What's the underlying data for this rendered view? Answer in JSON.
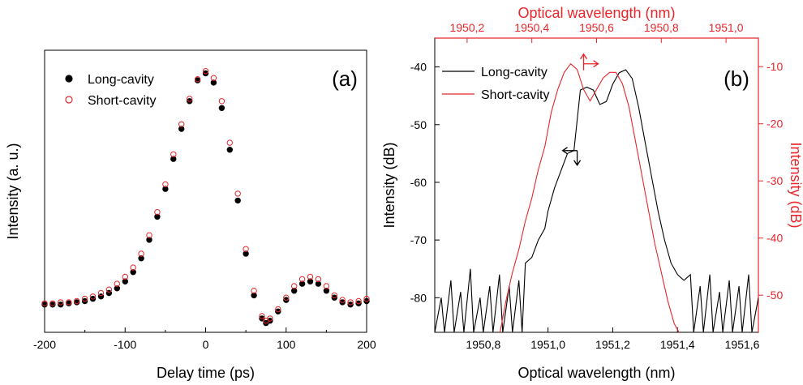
{
  "chart_data": [
    {
      "type": "scatter",
      "panel_label": "(a)",
      "xlabel": "Delay time (ps)",
      "ylabel": "Intensity (a. u.)",
      "xlim": [
        -200,
        200
      ],
      "ylim": [
        -0.12,
        1.1
      ],
      "x_ticks": [
        -200,
        -100,
        0,
        100,
        200
      ],
      "x_tick_labels": [
        "-200",
        "-100",
        "0",
        "100",
        "200"
      ],
      "legend_position": "top-left",
      "series": [
        {
          "name": "Long-cavity",
          "marker": "filled-circle",
          "color": "#000000",
          "points": [
            [
              -200,
              0
            ],
            [
              -190,
              0
            ],
            [
              -180,
              0
            ],
            [
              -170,
              0.005
            ],
            [
              -160,
              0.01
            ],
            [
              -150,
              0.015
            ],
            [
              -140,
              0.025
            ],
            [
              -130,
              0.035
            ],
            [
              -120,
              0.05
            ],
            [
              -110,
              0.07
            ],
            [
              -100,
              0.1
            ],
            [
              -90,
              0.14
            ],
            [
              -80,
              0.2
            ],
            [
              -70,
              0.28
            ],
            [
              -60,
              0.38
            ],
            [
              -50,
              0.5
            ],
            [
              -40,
              0.63
            ],
            [
              -30,
              0.76
            ],
            [
              -20,
              0.88
            ],
            [
              -10,
              0.97
            ],
            [
              0,
              1.0
            ],
            [
              10,
              0.96
            ],
            [
              20,
              0.85
            ],
            [
              30,
              0.67
            ],
            [
              40,
              0.45
            ],
            [
              50,
              0.22
            ],
            [
              60,
              0.04
            ],
            [
              70,
              -0.06
            ],
            [
              75,
              -0.08
            ],
            [
              80,
              -0.07
            ],
            [
              90,
              -0.03
            ],
            [
              100,
              0.02
            ],
            [
              110,
              0.06
            ],
            [
              120,
              0.09
            ],
            [
              130,
              0.1
            ],
            [
              140,
              0.09
            ],
            [
              150,
              0.06
            ],
            [
              160,
              0.03
            ],
            [
              170,
              0.01
            ],
            [
              180,
              0.0
            ],
            [
              190,
              0.005
            ],
            [
              200,
              0.015
            ]
          ]
        },
        {
          "name": "Short-cavity",
          "marker": "open-circle",
          "color": "#e8262b",
          "points": [
            [
              -200,
              0.005
            ],
            [
              -190,
              0.005
            ],
            [
              -180,
              0.01
            ],
            [
              -170,
              0.01
            ],
            [
              -160,
              0.015
            ],
            [
              -150,
              0.025
            ],
            [
              -140,
              0.035
            ],
            [
              -130,
              0.05
            ],
            [
              -120,
              0.065
            ],
            [
              -110,
              0.09
            ],
            [
              -100,
              0.12
            ],
            [
              -90,
              0.16
            ],
            [
              -80,
              0.22
            ],
            [
              -70,
              0.3
            ],
            [
              -60,
              0.4
            ],
            [
              -50,
              0.52
            ],
            [
              -40,
              0.65
            ],
            [
              -30,
              0.78
            ],
            [
              -20,
              0.89
            ],
            [
              -10,
              0.975
            ],
            [
              0,
              1.01
            ],
            [
              10,
              0.98
            ],
            [
              20,
              0.88
            ],
            [
              30,
              0.7
            ],
            [
              40,
              0.48
            ],
            [
              50,
              0.24
            ],
            [
              60,
              0.06
            ],
            [
              70,
              -0.05
            ],
            [
              75,
              -0.07
            ],
            [
              80,
              -0.06
            ],
            [
              90,
              -0.02
            ],
            [
              100,
              0.03
            ],
            [
              110,
              0.08
            ],
            [
              120,
              0.11
            ],
            [
              130,
              0.12
            ],
            [
              140,
              0.11
            ],
            [
              150,
              0.08
            ],
            [
              160,
              0.04
            ],
            [
              170,
              0.02
            ],
            [
              180,
              0.01
            ],
            [
              190,
              0.015
            ],
            [
              200,
              0.025
            ]
          ]
        }
      ]
    },
    {
      "type": "line",
      "panel_label": "(b)",
      "xlabel": "Optical wavelength (nm)",
      "ylabel": "Intensity (dB)",
      "x2label": "Optical wavelength (nm)",
      "y2label": "Intensity (dB)",
      "xlim": [
        1950.65,
        1951.65
      ],
      "ylim": [
        -86,
        -35
      ],
      "x2lim": [
        1950.1,
        1951.1
      ],
      "y2lim": [
        -56.5,
        -5
      ],
      "x_ticks": [
        1950.8,
        1951.0,
        1951.2,
        1951.4,
        1951.6
      ],
      "x_tick_labels": [
        "1950,8",
        "1951,0",
        "1951,2",
        "1951,4",
        "1951,6"
      ],
      "y_ticks": [
        -80,
        -70,
        -60,
        -50,
        -40
      ],
      "y_tick_labels": [
        "-80",
        "-70",
        "-60",
        "-50",
        "-40"
      ],
      "x2_ticks": [
        1950.2,
        1950.4,
        1950.6,
        1950.8,
        1951.0
      ],
      "x2_tick_labels": [
        "1950,2",
        "1950,4",
        "1950,6",
        "1950,8",
        "1951,0"
      ],
      "y2_ticks": [
        -50,
        -40,
        -30,
        -20,
        -10
      ],
      "y2_tick_labels": [
        "-50",
        "-40",
        "-30",
        "-20",
        "-10"
      ],
      "axis2_color": "#e8262b",
      "legend_position": "top-left",
      "series": [
        {
          "name": "Long-cavity",
          "axis": "bottom-left",
          "color": "#000000",
          "points": [
            [
              1950.65,
              -86
            ],
            [
              1950.67,
              -80
            ],
            [
              1950.68,
              -86
            ],
            [
              1950.7,
              -77
            ],
            [
              1950.71,
              -86
            ],
            [
              1950.73,
              -79
            ],
            [
              1950.74,
              -86
            ],
            [
              1950.76,
              -75
            ],
            [
              1950.77,
              -86
            ],
            [
              1950.79,
              -80
            ],
            [
              1950.8,
              -86
            ],
            [
              1950.82,
              -78
            ],
            [
              1950.83,
              -86
            ],
            [
              1950.85,
              -76
            ],
            [
              1950.86,
              -86
            ],
            [
              1950.88,
              -78
            ],
            [
              1950.89,
              -86
            ],
            [
              1950.91,
              -77
            ],
            [
              1950.92,
              -86
            ],
            [
              1950.93,
              -74
            ],
            [
              1950.95,
              -73
            ],
            [
              1950.97,
              -70
            ],
            [
              1950.99,
              -68
            ],
            [
              1951.0,
              -65
            ],
            [
              1951.02,
              -61
            ],
            [
              1951.04,
              -58
            ],
            [
              1951.06,
              -55
            ],
            [
              1951.08,
              -54.5
            ],
            [
              1951.1,
              -44
            ],
            [
              1951.12,
              -43.5
            ],
            [
              1951.14,
              -44
            ],
            [
              1951.16,
              -46.5
            ],
            [
              1951.18,
              -46
            ],
            [
              1951.2,
              -43
            ],
            [
              1951.22,
              -41
            ],
            [
              1951.24,
              -40.5
            ],
            [
              1951.26,
              -42
            ],
            [
              1951.28,
              -47
            ],
            [
              1951.3,
              -53
            ],
            [
              1951.32,
              -59
            ],
            [
              1951.34,
              -65
            ],
            [
              1951.36,
              -70
            ],
            [
              1951.38,
              -74
            ],
            [
              1951.4,
              -76
            ],
            [
              1951.42,
              -77
            ],
            [
              1951.44,
              -76
            ],
            [
              1951.45,
              -86
            ],
            [
              1951.47,
              -78
            ],
            [
              1951.48,
              -86
            ],
            [
              1951.5,
              -76
            ],
            [
              1951.51,
              -86
            ],
            [
              1951.53,
              -79
            ],
            [
              1951.54,
              -86
            ],
            [
              1951.56,
              -77
            ],
            [
              1951.57,
              -86
            ],
            [
              1951.59,
              -78
            ],
            [
              1951.6,
              -86
            ],
            [
              1951.62,
              -76
            ],
            [
              1951.63,
              -86
            ],
            [
              1951.65,
              -80
            ]
          ]
        },
        {
          "name": "Short-cavity",
          "axis": "top-right",
          "color": "#e8262b",
          "points": [
            [
              1950.3,
              -57
            ],
            [
              1950.32,
              -51
            ],
            [
              1950.34,
              -46
            ],
            [
              1950.36,
              -42
            ],
            [
              1950.38,
              -37
            ],
            [
              1950.4,
              -33
            ],
            [
              1950.42,
              -28
            ],
            [
              1950.44,
              -24
            ],
            [
              1950.46,
              -18
            ],
            [
              1950.48,
              -14
            ],
            [
              1950.5,
              -11
            ],
            [
              1950.52,
              -9.5
            ],
            [
              1950.54,
              -10.5
            ],
            [
              1950.56,
              -14
            ],
            [
              1950.58,
              -16
            ],
            [
              1950.6,
              -14
            ],
            [
              1950.62,
              -12
            ],
            [
              1950.64,
              -11
            ],
            [
              1950.66,
              -11
            ],
            [
              1950.68,
              -13
            ],
            [
              1950.7,
              -17
            ],
            [
              1950.72,
              -23
            ],
            [
              1950.74,
              -29
            ],
            [
              1950.76,
              -35
            ],
            [
              1950.78,
              -41
            ],
            [
              1950.8,
              -46
            ],
            [
              1950.82,
              -51
            ],
            [
              1950.84,
              -55
            ],
            [
              1950.86,
              -57
            ]
          ]
        }
      ]
    }
  ]
}
